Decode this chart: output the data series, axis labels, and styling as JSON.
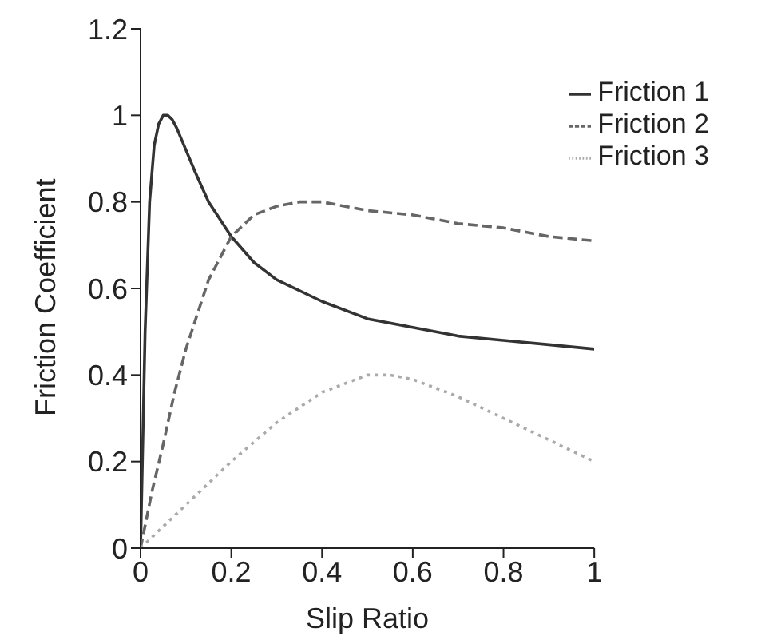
{
  "chart_data": {
    "type": "line",
    "xlabel": "Slip Ratio",
    "ylabel": "Friction Coefficient",
    "xlim": [
      0,
      1
    ],
    "ylim": [
      0,
      1.2
    ],
    "xticks": [
      0,
      0.2,
      0.4,
      0.6,
      0.8,
      1
    ],
    "yticks": [
      0,
      0.2,
      0.4,
      0.6,
      0.8,
      1,
      1.2
    ],
    "legend": "top right",
    "marker": "none",
    "series": [
      {
        "name": "Friction 1",
        "color": "#333333",
        "line_style": "solid",
        "x": [
          0,
          0.01,
          0.02,
          0.03,
          0.04,
          0.05,
          0.06,
          0.07,
          0.08,
          0.1,
          0.12,
          0.15,
          0.2,
          0.25,
          0.3,
          0.4,
          0.5,
          0.6,
          0.7,
          0.8,
          0.9,
          1
        ],
        "values": [
          0,
          0.5,
          0.8,
          0.93,
          0.98,
          1,
          1,
          0.99,
          0.97,
          0.92,
          0.87,
          0.8,
          0.72,
          0.66,
          0.62,
          0.57,
          0.53,
          0.51,
          0.49,
          0.48,
          0.47,
          0.46
        ]
      },
      {
        "name": "Friction 2",
        "color": "#666666",
        "line_style": "dashed",
        "x": [
          0,
          0.025,
          0.05,
          0.075,
          0.1,
          0.15,
          0.2,
          0.25,
          0.3,
          0.35,
          0.4,
          0.5,
          0.6,
          0.7,
          0.8,
          0.9,
          1
        ],
        "values": [
          0,
          0.13,
          0.24,
          0.36,
          0.46,
          0.62,
          0.72,
          0.77,
          0.79,
          0.8,
          0.8,
          0.78,
          0.77,
          0.75,
          0.74,
          0.72,
          0.71
        ]
      },
      {
        "name": "Friction 3",
        "color": "#aaaaaa",
        "line_style": "dotted",
        "x": [
          0,
          0.1,
          0.2,
          0.3,
          0.4,
          0.5,
          0.55,
          0.6,
          0.7,
          0.8,
          0.9,
          1
        ],
        "values": [
          0,
          0.1,
          0.2,
          0.29,
          0.36,
          0.4,
          0.4,
          0.39,
          0.35,
          0.3,
          0.25,
          0.2
        ]
      }
    ]
  }
}
